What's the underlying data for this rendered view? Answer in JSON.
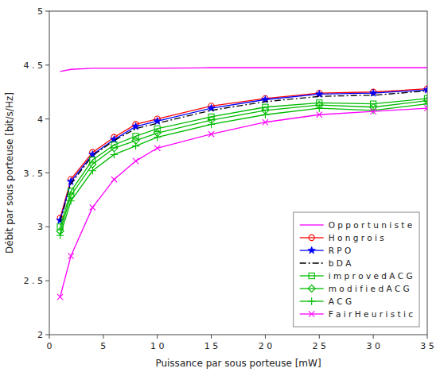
{
  "chart_data": {
    "type": "line",
    "xlabel": "Puissance par sous porteuse  [mW]",
    "ylabel": "Débit par sous porteuse [bit/s/Hz]",
    "x": [
      1,
      2,
      4,
      6,
      8,
      10,
      15,
      20,
      25,
      30,
      35
    ],
    "series": [
      {
        "name": "O p p o r t u n i s t e",
        "color": "#ff00ff",
        "marker": "none",
        "line_style": "solid",
        "values": [
          4.44,
          4.46,
          4.47,
          4.47,
          4.47,
          4.47,
          4.475,
          4.475,
          4.475,
          4.475,
          4.475
        ]
      },
      {
        "name": "H o n g r o i s",
        "color": "#ff0000",
        "marker": "circle",
        "line_style": "solid",
        "values": [
          3.08,
          3.44,
          3.69,
          3.83,
          3.95,
          4.0,
          4.12,
          4.19,
          4.24,
          4.25,
          4.28
        ]
      },
      {
        "name": "R P O",
        "color": "#0000ff",
        "marker": "star",
        "line_style": "solid",
        "values": [
          3.06,
          3.42,
          3.67,
          3.81,
          3.93,
          3.98,
          4.1,
          4.18,
          4.23,
          4.24,
          4.27
        ]
      },
      {
        "name": "b D A",
        "color": "#000000",
        "marker": "none",
        "line_style": "dash-dot",
        "values": [
          3.05,
          3.4,
          3.66,
          3.8,
          3.91,
          3.96,
          4.08,
          4.16,
          4.21,
          4.22,
          4.26
        ]
      },
      {
        "name": "i m p r o v e d  A C G",
        "color": "#00bb00",
        "marker": "square",
        "line_style": "solid",
        "values": [
          3.0,
          3.33,
          3.62,
          3.76,
          3.84,
          3.91,
          4.02,
          4.11,
          4.15,
          4.14,
          4.19
        ]
      },
      {
        "name": "m o d i f i e d  A C G",
        "color": "#00bb00",
        "marker": "diamond",
        "line_style": "solid",
        "values": [
          2.96,
          3.29,
          3.58,
          3.73,
          3.8,
          3.87,
          3.99,
          4.08,
          4.13,
          4.11,
          4.17
        ]
      },
      {
        "name": "A C G",
        "color": "#00bb00",
        "marker": "plus",
        "line_style": "solid",
        "values": [
          2.92,
          3.24,
          3.52,
          3.67,
          3.75,
          3.83,
          3.95,
          4.04,
          4.1,
          4.08,
          4.14
        ]
      },
      {
        "name": "F a i r  H e u r i s t i c",
        "color": "#ff00ff",
        "marker": "x",
        "line_style": "solid",
        "values": [
          2.35,
          2.73,
          3.18,
          3.44,
          3.61,
          3.73,
          3.86,
          3.97,
          4.04,
          4.07,
          4.1
        ]
      }
    ],
    "xlim": [
      0,
      35
    ],
    "ylim": [
      2,
      5
    ],
    "xticks": [
      0,
      5,
      {
        "value": 10,
        "label": "1 0"
      },
      {
        "value": 15,
        "label": "1 5"
      },
      {
        "value": 20,
        "label": "2 0"
      },
      {
        "value": 25,
        "label": "2 5"
      },
      {
        "value": 30,
        "label": "3 0"
      },
      {
        "value": 35,
        "label": "3 5"
      }
    ],
    "yticks": [
      2,
      {
        "value": 2.5,
        "label": "2 . 5"
      },
      3,
      {
        "value": 3.5,
        "label": "3 . 5"
      },
      4,
      {
        "value": 4.5,
        "label": "4 . 5"
      },
      5
    ],
    "grid": false,
    "legend": "lower right"
  }
}
